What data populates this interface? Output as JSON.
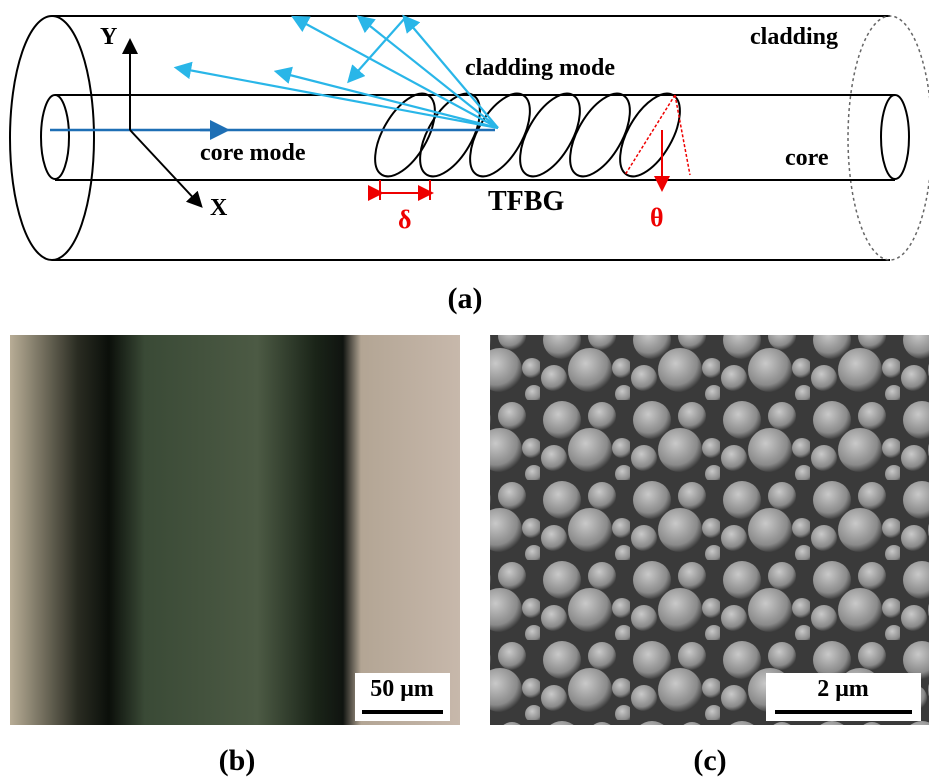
{
  "panel_a": {
    "axis_y": "Y",
    "axis_x": "X",
    "cladding": "cladding",
    "cladding_mode": "cladding mode",
    "core_mode": "core mode",
    "core": "core",
    "grating": "TFBG",
    "period": "δ",
    "tilt": "θ",
    "caption": "(a)"
  },
  "panel_b": {
    "scale_bar": "50 μm",
    "caption": "(b)"
  },
  "panel_c": {
    "scale_bar": "2 μm",
    "caption": "(c)"
  }
}
